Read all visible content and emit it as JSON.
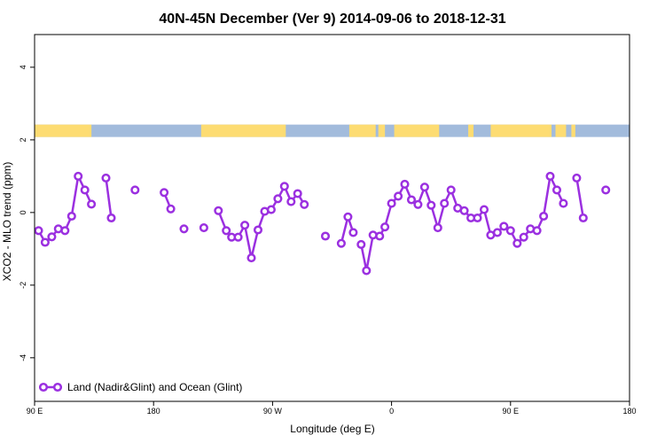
{
  "chart_data": {
    "type": "line",
    "title": "40N-45N December (Ver 9)   2014-09-06 to 2018-12-31",
    "xlabel": "Longitude (deg E)",
    "ylabel": "XCO2 - MLO trend (ppm)",
    "xlim": [
      90,
      540
    ],
    "ylim": [
      -5.2,
      4.9
    ],
    "x_ticks": [
      {
        "value": 90,
        "label": "90 E"
      },
      {
        "value": 180,
        "label": "180"
      },
      {
        "value": 270,
        "label": "90 W"
      },
      {
        "value": 360,
        "label": "0"
      },
      {
        "value": 450,
        "label": "90 E"
      },
      {
        "value": 540,
        "label": "180"
      }
    ],
    "y_ticks": [
      -4,
      -2,
      0,
      2,
      4
    ],
    "legend": {
      "label": "Land (Nadir&Glint) and Ocean (Glint)",
      "position": "bottom-left"
    },
    "colors": {
      "series": "#9b30e0",
      "land": "#fddc72",
      "ocean": "#a2bbdc"
    },
    "land_ocean_strip": {
      "y_center": 2.25,
      "land_segments": [
        [
          90,
          133
        ],
        [
          216,
          280
        ],
        [
          328,
          348
        ],
        [
          350,
          355
        ],
        [
          362,
          396
        ],
        [
          418,
          422
        ],
        [
          435,
          481
        ],
        [
          484,
          492
        ],
        [
          496,
          499
        ]
      ]
    },
    "series": [
      {
        "name": "Land (Nadir&Glint) and Ocean (Glint)",
        "segments": [
          [
            [
              93,
              -0.5
            ],
            [
              98,
              -0.82
            ],
            [
              103,
              -0.67
            ],
            [
              108,
              -0.45
            ],
            [
              113,
              -0.5
            ],
            [
              118,
              -0.1
            ],
            [
              123,
              1.0
            ],
            [
              128,
              0.62
            ],
            [
              133,
              0.23
            ]
          ],
          [
            [
              144,
              0.95
            ],
            [
              148,
              -0.15
            ]
          ],
          [
            [
              166,
              0.62
            ]
          ],
          [
            [
              188,
              0.55
            ],
            [
              193,
              0.1
            ]
          ],
          [
            [
              203,
              -0.45
            ]
          ],
          [
            [
              218,
              -0.42
            ]
          ],
          [
            [
              229,
              0.05
            ],
            [
              235,
              -0.5
            ],
            [
              239,
              -0.68
            ],
            [
              244,
              -0.68
            ],
            [
              249,
              -0.35
            ],
            [
              254,
              -1.25
            ],
            [
              259,
              -0.48
            ],
            [
              264,
              0.03
            ],
            [
              269,
              0.08
            ],
            [
              274,
              0.38
            ],
            [
              279,
              0.72
            ],
            [
              284,
              0.3
            ],
            [
              289,
              0.52
            ],
            [
              294,
              0.22
            ]
          ],
          [
            [
              310,
              -0.65
            ]
          ],
          [
            [
              322,
              -0.85
            ],
            [
              327,
              -0.12
            ],
            [
              331,
              -0.55
            ]
          ],
          [
            [
              337,
              -0.88
            ],
            [
              341,
              -1.6
            ],
            [
              346,
              -0.62
            ],
            [
              351,
              -0.65
            ],
            [
              355,
              -0.4
            ],
            [
              360,
              0.25
            ],
            [
              365,
              0.45
            ],
            [
              370,
              0.78
            ],
            [
              375,
              0.35
            ],
            [
              380,
              0.22
            ],
            [
              385,
              0.7
            ],
            [
              390,
              0.2
            ],
            [
              395,
              -0.42
            ],
            [
              400,
              0.25
            ],
            [
              405,
              0.62
            ],
            [
              410,
              0.12
            ],
            [
              415,
              0.05
            ],
            [
              420,
              -0.15
            ],
            [
              425,
              -0.15
            ],
            [
              430,
              0.08
            ],
            [
              435,
              -0.62
            ],
            [
              440,
              -0.55
            ],
            [
              445,
              -0.38
            ],
            [
              450,
              -0.5
            ],
            [
              455,
              -0.85
            ],
            [
              460,
              -0.68
            ],
            [
              465,
              -0.45
            ],
            [
              470,
              -0.5
            ],
            [
              475,
              -0.1
            ],
            [
              480,
              1.0
            ],
            [
              485,
              0.62
            ],
            [
              490,
              0.25
            ]
          ]
        ],
        "isolated_tail": [
          [
            [
              500,
              0.95
            ],
            [
              505,
              -0.15
            ]
          ],
          [
            [
              522,
              0.62
            ]
          ]
        ]
      }
    ]
  }
}
